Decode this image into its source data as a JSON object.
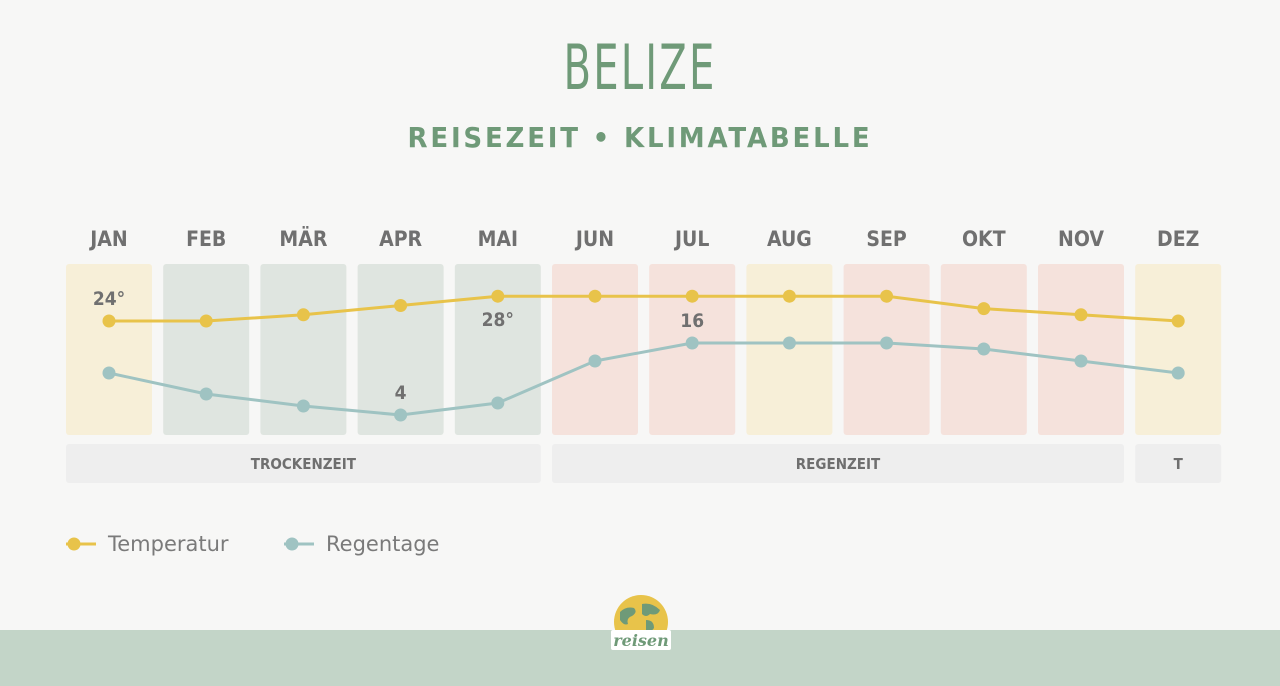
{
  "header": {
    "title": "BELIZE",
    "subtitle": "REISEZEIT • KLIMATABELLE"
  },
  "legend": {
    "temperature_label": "Temperatur",
    "rain_label": "Regentage"
  },
  "logo": {
    "text": "reisen",
    "icon": "globe-icon"
  },
  "colors": {
    "temperature": "#e8c34a",
    "rain": "#9fc3c2",
    "dry": "#dfe5e0",
    "rainy": "#f5e2dc",
    "transition": "#f7efd8",
    "season_band": "#eeeeee",
    "title": "#6f9a78",
    "month_label": "#707070"
  },
  "chart_data": {
    "type": "line",
    "categories": [
      "JAN",
      "FEB",
      "MÄR",
      "APR",
      "MAI",
      "JUN",
      "JUL",
      "AUG",
      "SEP",
      "OKT",
      "NOV",
      "DEZ"
    ],
    "series": [
      {
        "name": "Temperatur",
        "values": [
          24,
          24,
          25,
          26.5,
          28,
          28,
          28,
          28,
          28,
          26,
          25,
          24
        ],
        "annotations": [
          {
            "month": "JAN",
            "label": "24°"
          },
          {
            "month": "MAI",
            "label": "28°"
          }
        ]
      },
      {
        "name": "Regentage",
        "values": [
          11,
          7.5,
          5.5,
          4,
          6,
          13,
          16,
          16,
          16,
          15,
          13,
          11
        ],
        "annotations": [
          {
            "month": "APR",
            "label": "4"
          },
          {
            "month": "JUL",
            "label": "16"
          }
        ]
      }
    ],
    "month_seasons": [
      "transition",
      "dry",
      "dry",
      "dry",
      "dry",
      "rainy",
      "rainy",
      "transition",
      "rainy",
      "rainy",
      "rainy",
      "transition"
    ],
    "seasons": [
      {
        "label": "TROCKENZEIT",
        "start_month": "JAN",
        "end_month": "MAI"
      },
      {
        "label": "REGENZEIT",
        "start_month": "JUN",
        "end_month": "NOV"
      },
      {
        "label": "T",
        "start_month": "DEZ",
        "end_month": "DEZ"
      }
    ]
  }
}
